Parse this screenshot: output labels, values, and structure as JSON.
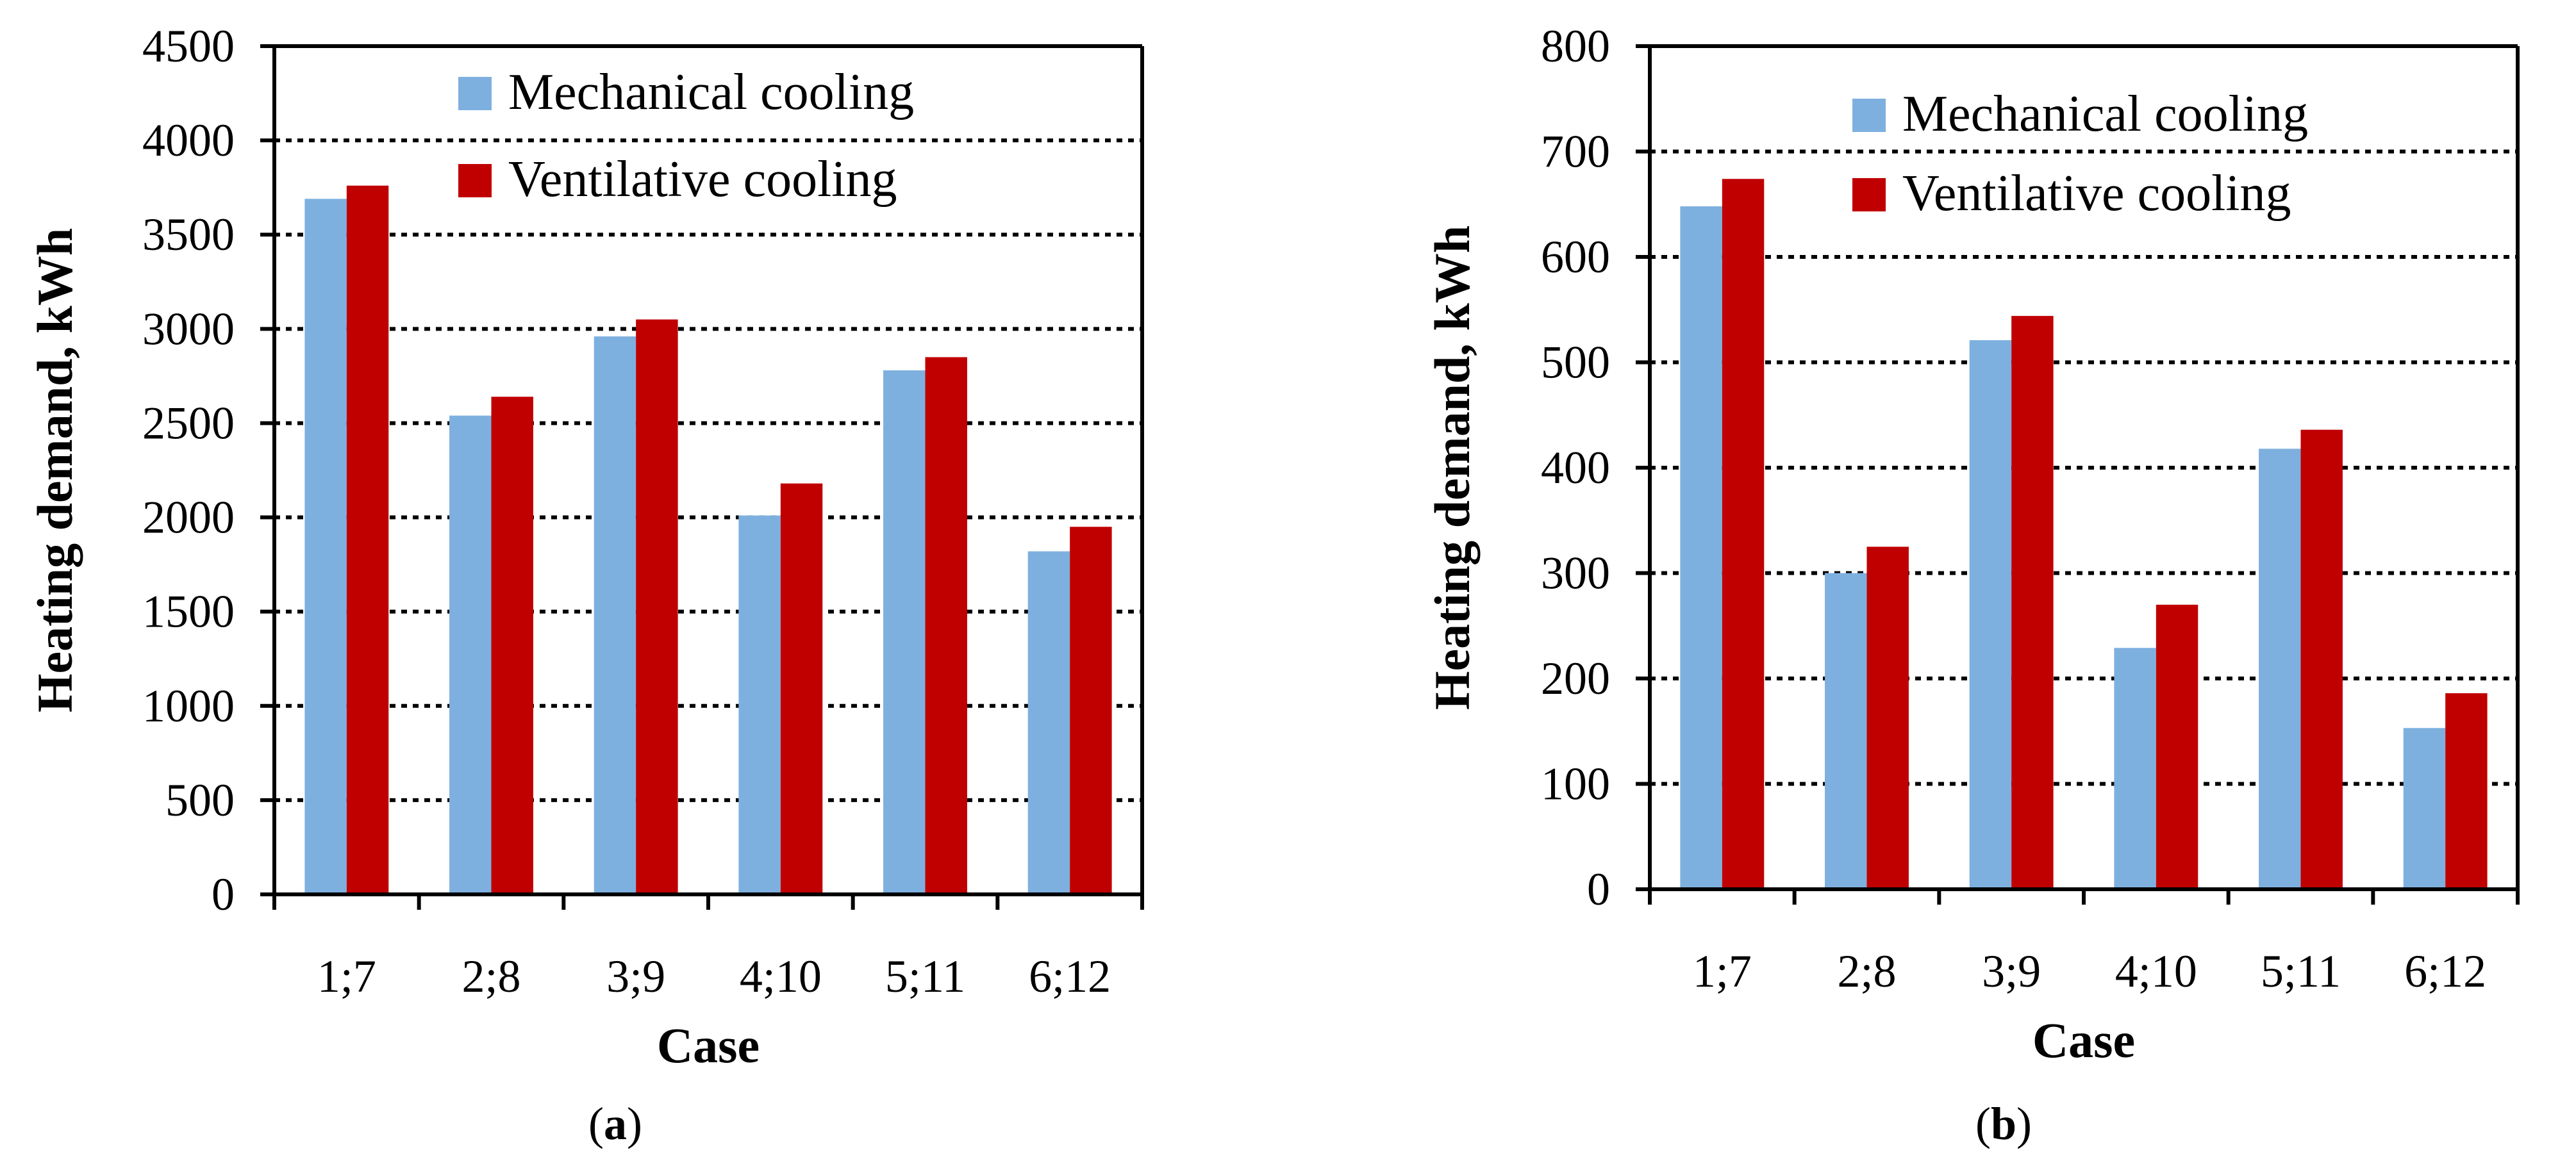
{
  "chart_data": [
    {
      "type": "bar",
      "panel_label": "a",
      "title": "",
      "xlabel": "Case",
      "ylabel": "Heating demand, kWh",
      "categories": [
        "1;7",
        "2;8",
        "3;9",
        "4;10",
        "5;11",
        "6;12"
      ],
      "ylim": [
        0,
        4500
      ],
      "yticks": [
        0,
        500,
        1000,
        1500,
        2000,
        2500,
        3000,
        3500,
        4000,
        4500
      ],
      "grid": true,
      "legend_position": "top-right",
      "series": [
        {
          "name": "Mechanical cooling",
          "color": "#7eb0df",
          "values": [
            3690,
            2540,
            2960,
            2010,
            2780,
            1820
          ]
        },
        {
          "name": "Ventilative cooling",
          "color": "#c00000",
          "values": [
            3760,
            2640,
            3050,
            2180,
            2850,
            1950
          ]
        }
      ]
    },
    {
      "type": "bar",
      "panel_label": "b",
      "title": "",
      "xlabel": "Case",
      "ylabel": "Heating demand, kWh",
      "categories": [
        "1;7",
        "2;8",
        "3;9",
        "4;10",
        "5;11",
        "6;12"
      ],
      "ylim": [
        0,
        800
      ],
      "yticks": [
        0,
        100,
        200,
        300,
        400,
        500,
        600,
        700,
        800
      ],
      "grid": true,
      "legend_position": "top-right",
      "series": [
        {
          "name": "Mechanical cooling",
          "color": "#7eb0df",
          "values": [
            648,
            300,
            521,
            229,
            418,
            153
          ]
        },
        {
          "name": "Ventilative cooling",
          "color": "#c00000",
          "values": [
            674,
            325,
            544,
            270,
            436,
            186
          ]
        }
      ]
    }
  ]
}
